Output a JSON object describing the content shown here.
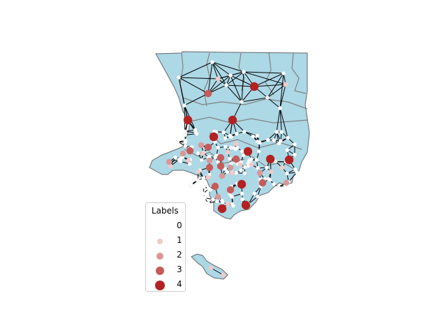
{
  "map": {
    "land_color": "#add8e6",
    "boundary_color": "#808080",
    "edge_color": "#000000",
    "node_colors": [
      "#ffffff",
      "#f2c9c9",
      "#db9696",
      "#c65a5a",
      "#b22222"
    ]
  },
  "legend": {
    "title": "Labels",
    "entries": [
      {
        "label": "0",
        "color": "#ffffff"
      },
      {
        "label": "1",
        "color": "#f2c9c9"
      },
      {
        "label": "2",
        "color": "#db9696"
      },
      {
        "label": "3",
        "color": "#c65a5a"
      },
      {
        "label": "4",
        "color": "#b22222"
      }
    ]
  }
}
